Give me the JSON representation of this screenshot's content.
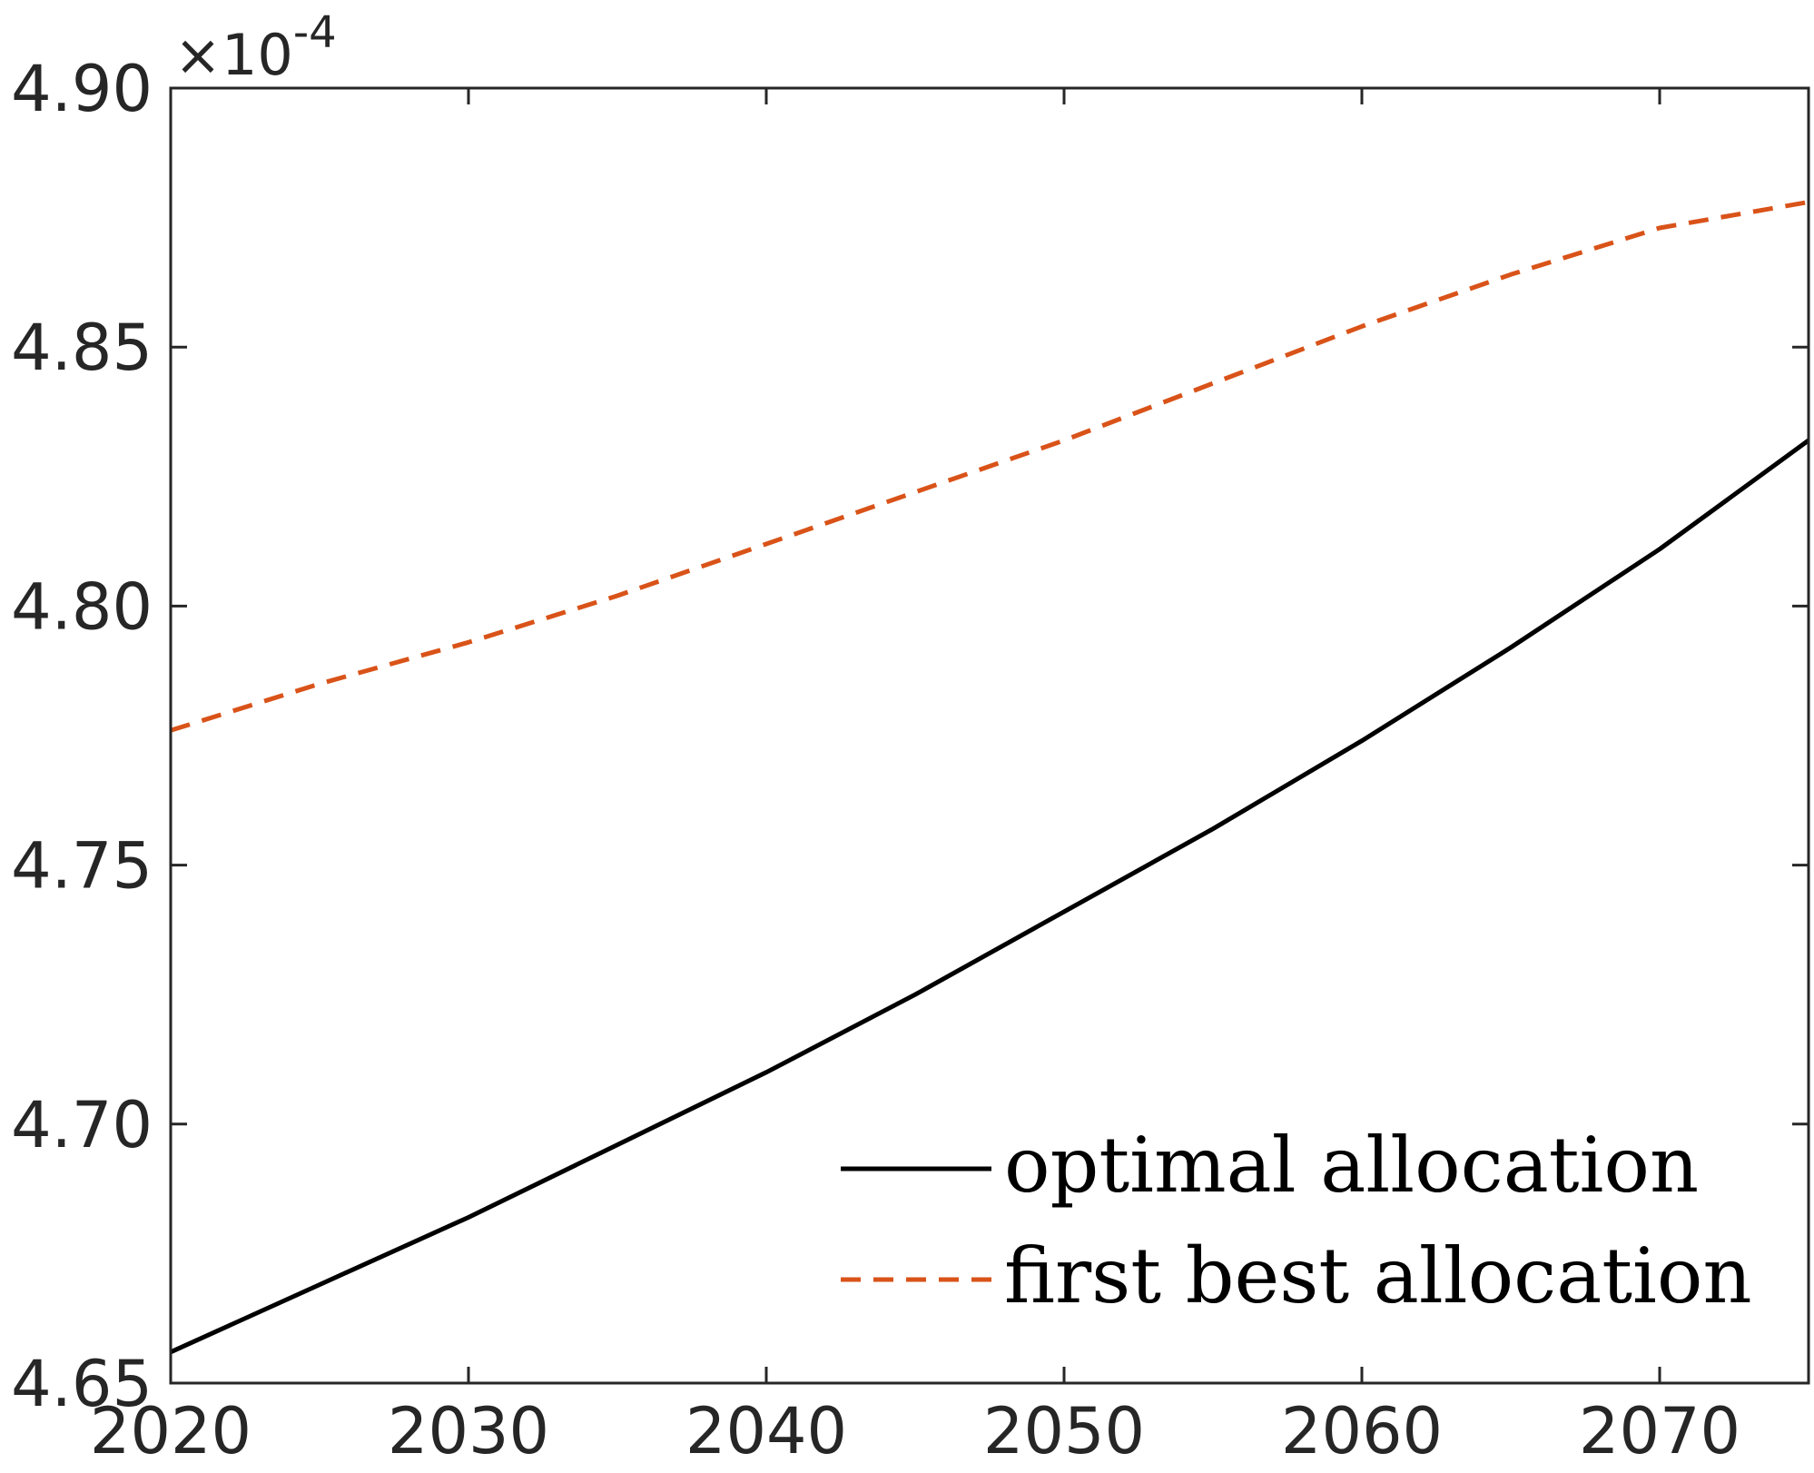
{
  "chart_data": {
    "type": "line",
    "x": [
      2020,
      2025,
      2030,
      2035,
      2040,
      2045,
      2050,
      2055,
      2060,
      2065,
      2070,
      2075
    ],
    "series": [
      {
        "name": "optimal allocation",
        "color": "#000000",
        "style": "solid",
        "values": [
          4.656,
          4.669,
          4.682,
          4.696,
          4.71,
          4.725,
          4.741,
          4.757,
          4.774,
          4.792,
          4.811,
          4.832
        ]
      },
      {
        "name": "first best allocation",
        "color": "#D95319",
        "style": "dashed",
        "values": [
          4.776,
          4.785,
          4.793,
          4.802,
          4.812,
          4.822,
          4.832,
          4.843,
          4.854,
          4.864,
          4.873,
          4.878
        ]
      }
    ],
    "xlim": [
      2020,
      2075
    ],
    "ylim": [
      4.65,
      4.9
    ],
    "x_ticks": [
      "2020",
      "2030",
      "2040",
      "2050",
      "2060",
      "2070"
    ],
    "y_ticks": [
      "4.65",
      "4.70",
      "4.75",
      "4.80",
      "4.85",
      "4.90"
    ],
    "y_exponent_base": "×10",
    "y_exponent_power": "-4",
    "grid": false,
    "legend_position": "bottom-right"
  }
}
